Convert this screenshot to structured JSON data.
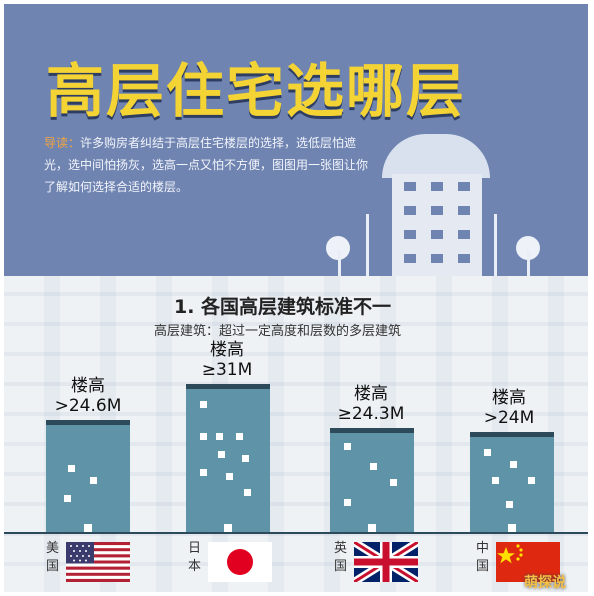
{
  "header": {
    "title": "高层住宅选哪层",
    "intro_lead": "导读：",
    "intro_text": "许多购房者纠结于高层住宅楼层的选择，选低层怕遮光，选中间怕扬灰，选高一点又怕不方便，图图用一张图让你了解如何选择合适的楼层。"
  },
  "section": {
    "title": "1. 各国高层建筑标准不一",
    "subtitle": "高层建筑：超过一定高度和层数的多层建筑"
  },
  "countries": [
    {
      "name": "美国",
      "label_line1": "楼高",
      "label_line2": ">24.6M",
      "threshold_m": 24.6,
      "flag": "us-flag"
    },
    {
      "name": "日本",
      "label_line1": "楼高",
      "label_line2": "≥31M",
      "threshold_m": 31,
      "flag": "japan-flag"
    },
    {
      "name": "英国",
      "label_line1": "楼高",
      "label_line2": "≥24.3M",
      "threshold_m": 24.3,
      "flag": "uk-flag"
    },
    {
      "name": "中国",
      "label_line1": "楼高",
      "label_line2": ">24M",
      "threshold_m": 24,
      "flag": "china-flag"
    }
  ],
  "watermark": "萌探说",
  "colors": {
    "header_bg": "#6f84b1",
    "title": "#f4d334",
    "building": "#5f93a8",
    "building_roof": "#2d4a5b"
  }
}
